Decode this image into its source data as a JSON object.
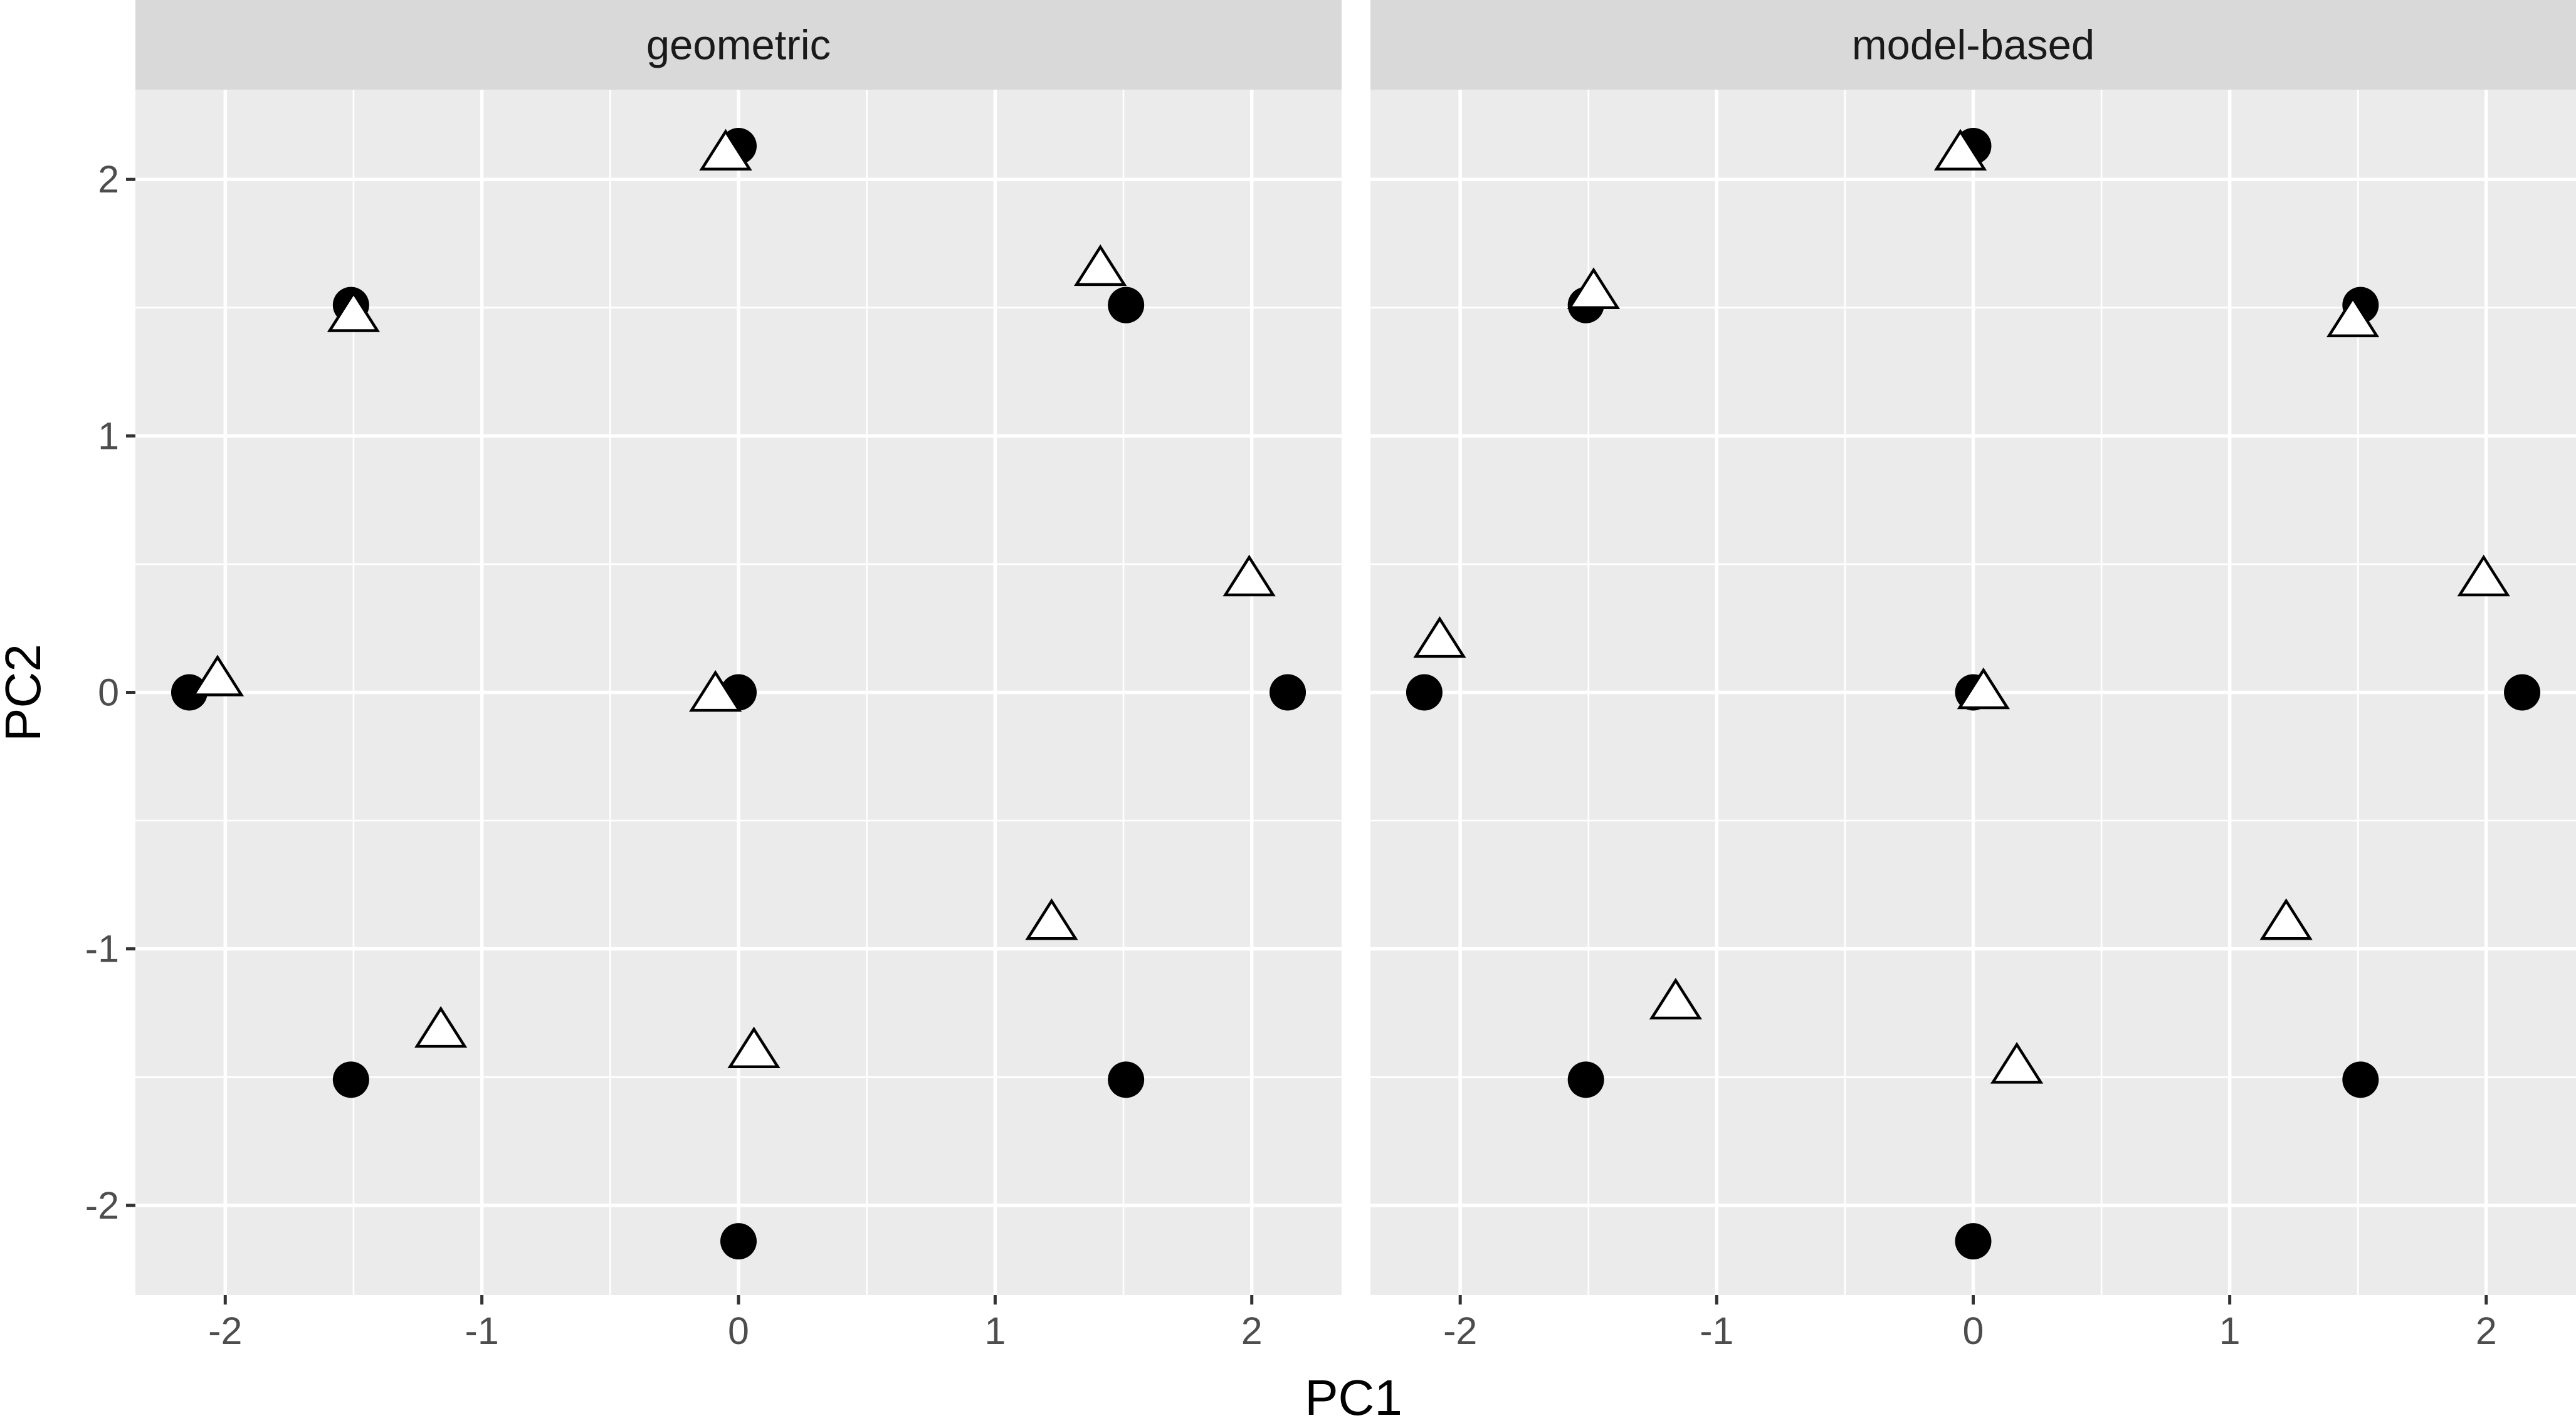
{
  "chart_data": {
    "type": "scatter",
    "xlabel": "PC1",
    "ylabel": "PC2",
    "xlim": [
      -2.35,
      2.35
    ],
    "ylim": [
      -2.35,
      2.35
    ],
    "x_ticks": [
      -2,
      -1,
      0,
      1,
      2
    ],
    "y_ticks": [
      -2,
      -1,
      0,
      1,
      2
    ],
    "x_tick_labels": [
      "-2",
      "-1",
      "0",
      "1",
      "2"
    ],
    "y_tick_labels": [
      "-2",
      "-1",
      "0",
      "1",
      "2"
    ],
    "grid": true,
    "legend": "none",
    "colors": {
      "panel": "#EBEBEB",
      "strip": "#D9D9D9",
      "grid": "#FFFFFF",
      "points": "#000000"
    },
    "facets": [
      {
        "label": "geometric",
        "series": [
          {
            "marker": "circle",
            "x": [
              0,
              -1.51,
              1.51,
              -2.14,
              0,
              2.14,
              -1.51,
              1.51,
              0
            ],
            "y": [
              2.13,
              1.51,
              1.51,
              0,
              0,
              0,
              -1.51,
              -1.51,
              -2.14
            ]
          },
          {
            "marker": "triangle",
            "x": [
              -0.05,
              -1.5,
              1.41,
              1.99,
              -2.03,
              -0.09,
              1.22,
              -1.16,
              0.06
            ],
            "y": [
              2.09,
              1.46,
              1.64,
              0.43,
              0.04,
              -0.02,
              -0.91,
              -1.33,
              -1.41
            ]
          }
        ]
      },
      {
        "label": "model-based",
        "series": [
          {
            "marker": "circle",
            "x": [
              0,
              -1.51,
              1.51,
              -2.14,
              0,
              2.14,
              -1.51,
              1.51,
              0
            ],
            "y": [
              2.13,
              1.51,
              1.51,
              0,
              0,
              0,
              -1.51,
              -1.51,
              -2.14
            ]
          },
          {
            "marker": "triangle",
            "x": [
              -0.05,
              -1.48,
              1.48,
              1.99,
              -2.08,
              0.04,
              1.22,
              -1.16,
              0.17
            ],
            "y": [
              2.09,
              1.55,
              1.44,
              0.43,
              0.19,
              -0.01,
              -0.91,
              -1.22,
              -1.47
            ]
          }
        ]
      }
    ]
  }
}
